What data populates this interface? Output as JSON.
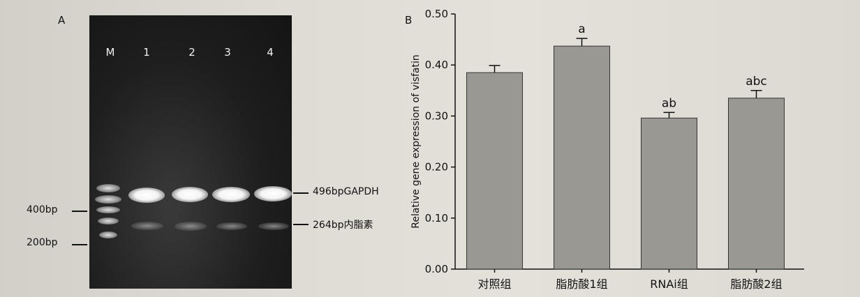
{
  "panel_a": {
    "letter": "A",
    "lanes": [
      "M",
      "1",
      "2",
      "3",
      "4"
    ],
    "marker_labels": [
      "400bp",
      "200bp"
    ],
    "band_labels": [
      "496bpGAPDH",
      "264bp内脂素"
    ]
  },
  "panel_b": {
    "letter": "B"
  },
  "chart_data": {
    "type": "bar",
    "title": "",
    "xlabel": "",
    "ylabel": "Relative gene expression of visfatin",
    "ylim": [
      0,
      0.5
    ],
    "yticks": [
      "0.00",
      "0.10",
      "0.20",
      "0.30",
      "0.40",
      "0.50"
    ],
    "categories": [
      "对照组",
      "脂肪酸1组",
      "RNAi组",
      "脂肪酸2组"
    ],
    "values": [
      0.385,
      0.437,
      0.296,
      0.335
    ],
    "errors": [
      0.014,
      0.015,
      0.011,
      0.015
    ],
    "annotations": [
      "",
      "a",
      "ab",
      "abc"
    ],
    "bar_color": "#9a9893"
  }
}
